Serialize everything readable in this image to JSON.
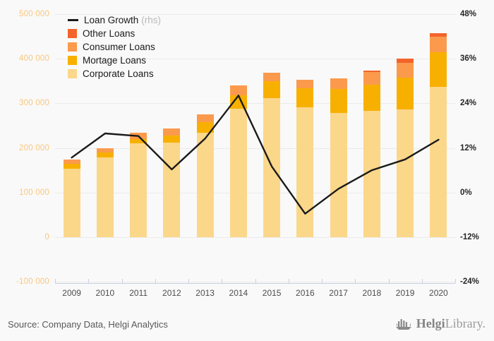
{
  "colors": {
    "background": "#f9f9f9",
    "grid": "#ebebeb",
    "axis": "#c9d0e4",
    "loan_growth_line": "#1a1a1a",
    "other_loans": "#F3642A",
    "consumer_loans": "#FB9A4D",
    "mortage_loans": "#F8B000",
    "corporate_loans": "#FBD78A",
    "left_axis_labels": "#F9C77E",
    "right_axis_labels": "#262626"
  },
  "legend": {
    "items": [
      {
        "label": "Loan Growth",
        "suffix": "(rhs)",
        "type": "line",
        "color": "#1a1a1a"
      },
      {
        "label": "Other Loans",
        "type": "box",
        "color": "#F3642A"
      },
      {
        "label": "Consumer Loans",
        "type": "box",
        "color": "#FB9A4D"
      },
      {
        "label": "Mortage Loans",
        "type": "box",
        "color": "#F8B000"
      },
      {
        "label": "Corporate Loans",
        "type": "box",
        "color": "#FBD78A"
      }
    ]
  },
  "chart_data": {
    "type": "bar",
    "subtype": "stacked-bars-with-line-overlay",
    "title": "",
    "categories": [
      "2009",
      "2010",
      "2011",
      "2012",
      "2013",
      "2014",
      "2015",
      "2016",
      "2017",
      "2018",
      "2019",
      "2020"
    ],
    "series": [
      {
        "name": "Corporate Loans",
        "color": "#FBD78A",
        "values": [
          154000,
          179000,
          210000,
          212000,
          234000,
          288000,
          312000,
          291000,
          279000,
          283000,
          286000,
          337000
        ]
      },
      {
        "name": "Mortage Loans",
        "color": "#F8B000",
        "values": [
          10000,
          10000,
          9500,
          16000,
          23000,
          30500,
          37500,
          43000,
          53000,
          58500,
          72000,
          77000
        ]
      },
      {
        "name": "Consumer Loans",
        "color": "#FB9A4D",
        "values": [
          10000,
          10500,
          14000,
          15000,
          17500,
          21500,
          18500,
          18000,
          24000,
          28500,
          33000,
          35000
        ]
      },
      {
        "name": "Other Loans",
        "color": "#F3642A",
        "values": [
          0,
          0,
          0,
          0,
          0,
          0,
          0,
          0,
          0,
          3500,
          9500,
          8500
        ]
      }
    ],
    "line": {
      "name": "Loan Growth",
      "legend_suffix": "(rhs)",
      "axis": "right",
      "color": "#1a1a1a",
      "values": [
        9.4,
        15.9,
        15.2,
        6.2,
        14.5,
        26.1,
        7.0,
        -5.7,
        1.0,
        6.0,
        8.9,
        14.2
      ]
    },
    "left_axis": {
      "min": -100000,
      "max": 500000,
      "tick_labels": [
        "500 000",
        "400 000",
        "300 000",
        "200 000",
        "100 000",
        "0",
        "-100 000"
      ]
    },
    "right_axis": {
      "min": -24,
      "max": 48,
      "tick_labels": [
        "48%",
        "36%",
        "24%",
        "12%",
        "0%",
        "-12%",
        "-24%"
      ]
    },
    "grid": true,
    "legend_position": "top-left"
  },
  "footer": {
    "source": "Source: Company Data, Helgi Analytics",
    "logo_bold": "Helgi",
    "logo_light": "Library."
  }
}
